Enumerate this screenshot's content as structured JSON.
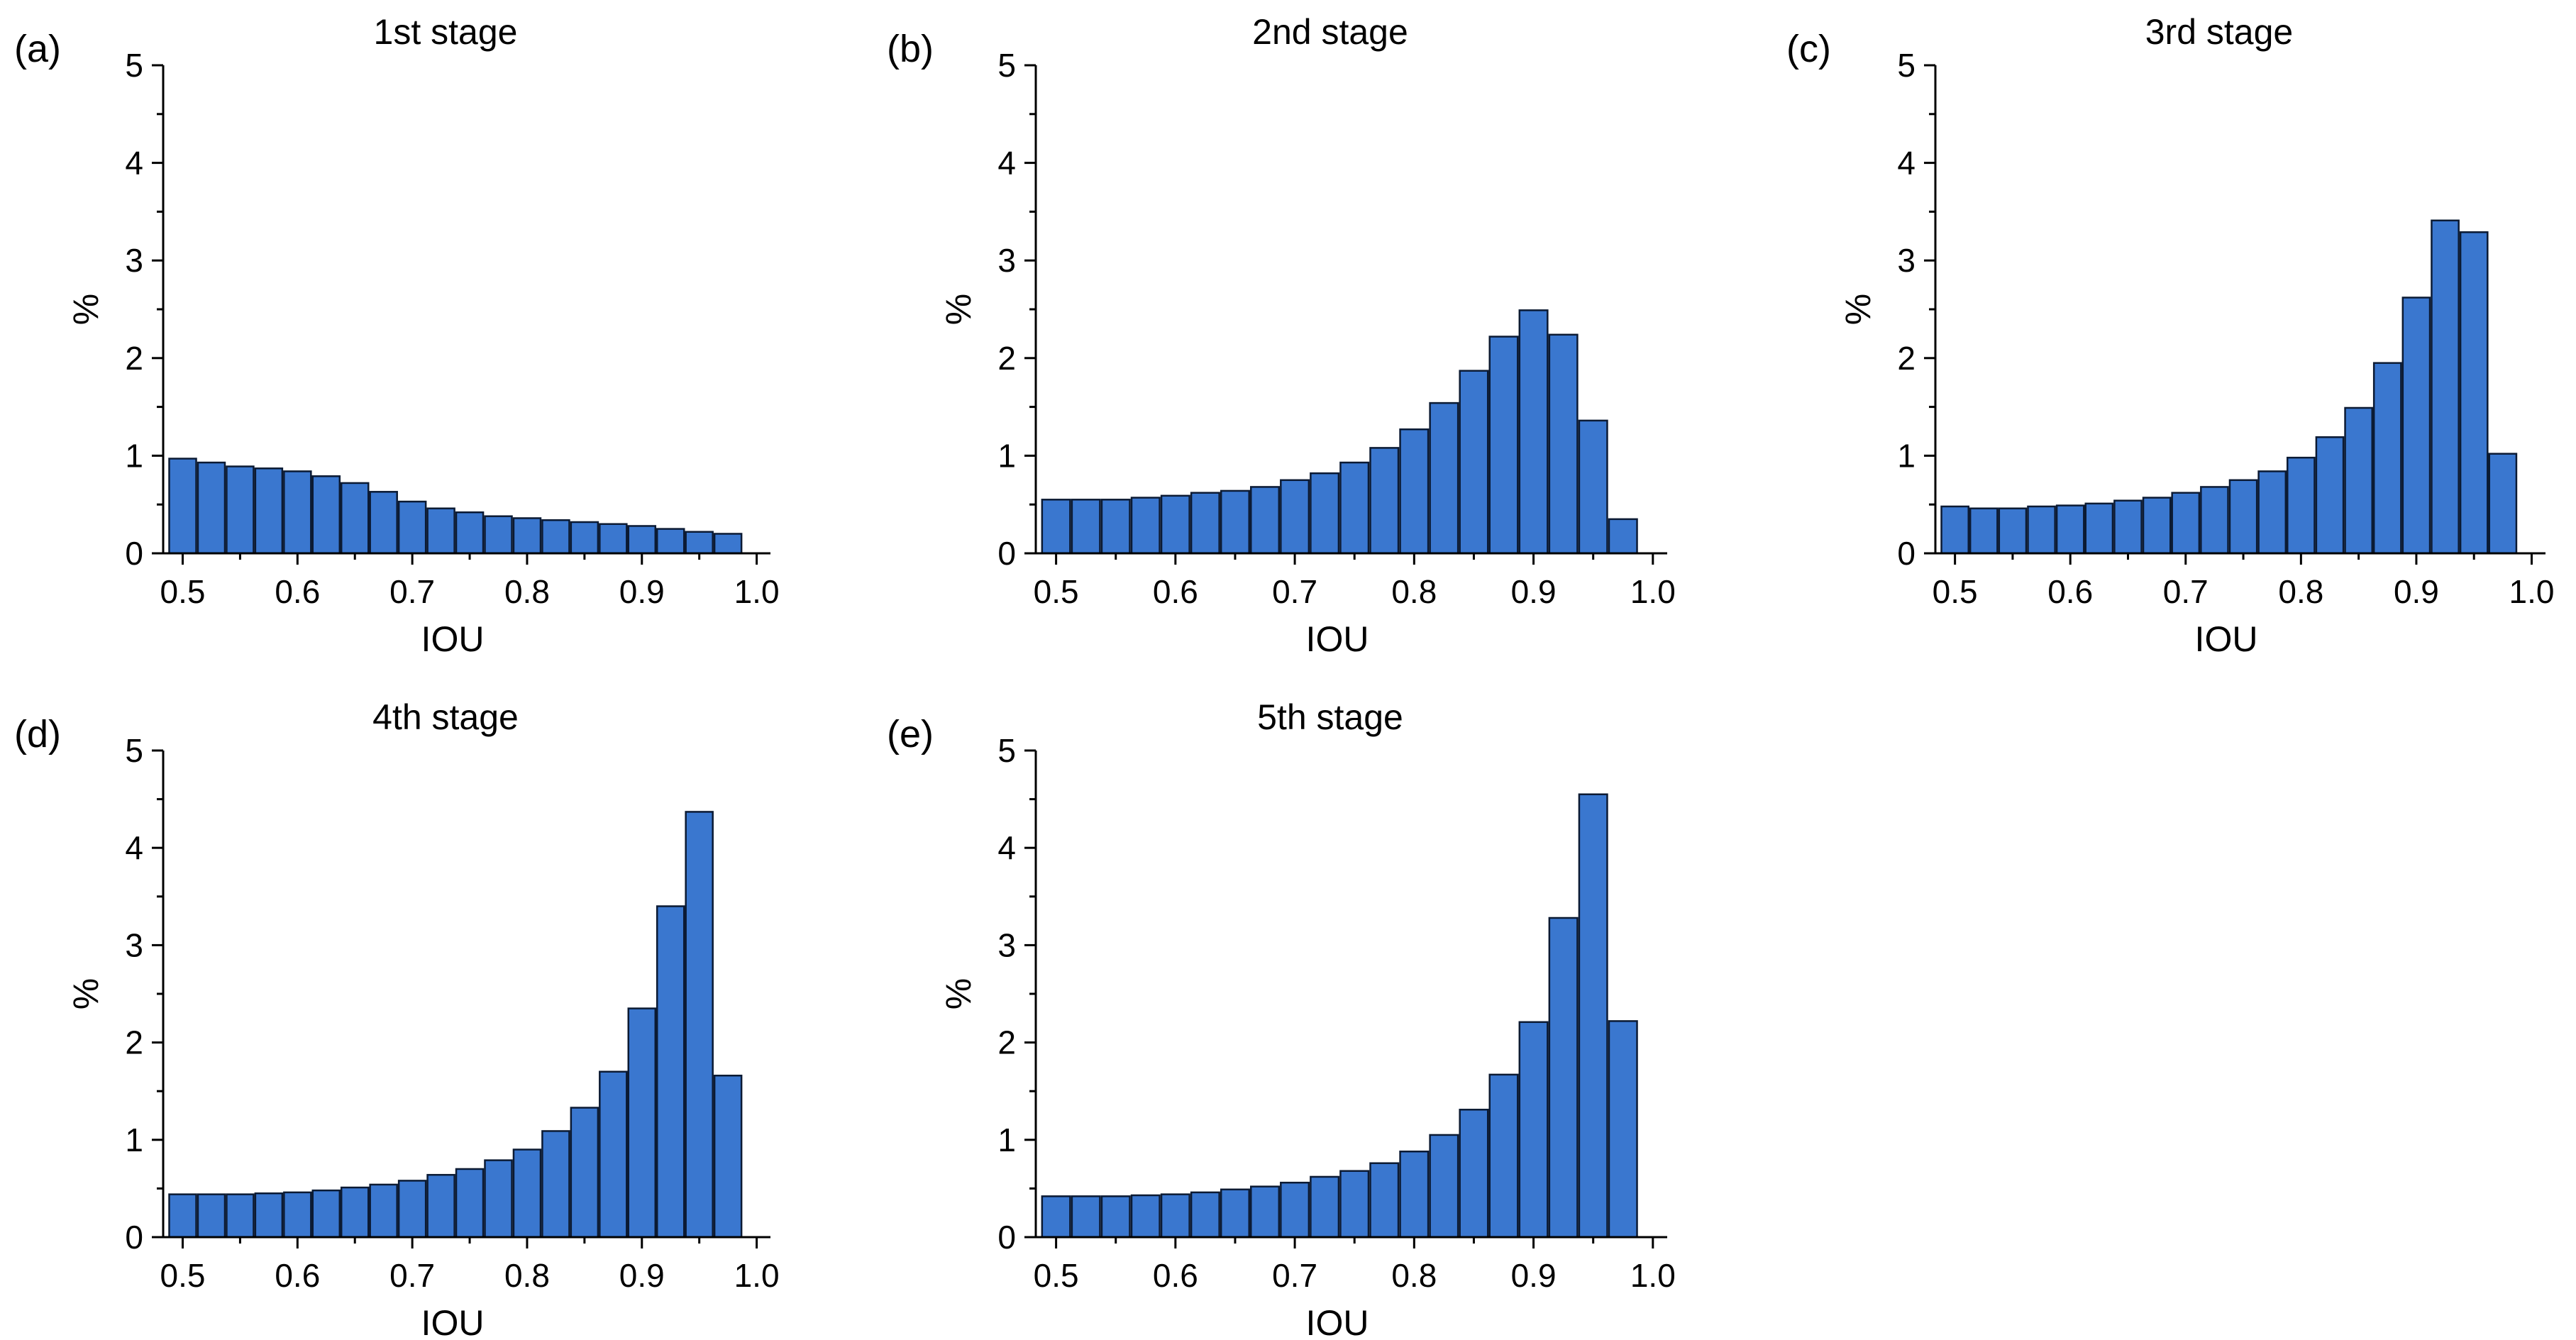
{
  "chart_data": [
    {
      "panel": "(a)",
      "type": "bar",
      "title": "1st stage",
      "xlabel": "IOU",
      "ylabel": "%",
      "xlim": [
        0.5,
        1.0
      ],
      "ylim": [
        0,
        5
      ],
      "x_ticks": [
        "0.5",
        "0.6",
        "0.7",
        "0.8",
        "0.9",
        "1.0"
      ],
      "y_ticks": [
        "0",
        "1",
        "2",
        "3",
        "4",
        "5"
      ],
      "bin_width": 0.025,
      "x": [
        0.5,
        0.525,
        0.55,
        0.575,
        0.6,
        0.625,
        0.65,
        0.675,
        0.7,
        0.725,
        0.75,
        0.775,
        0.8,
        0.825,
        0.85,
        0.875,
        0.9,
        0.925,
        0.95,
        0.975
      ],
      "values": [
        0.97,
        0.93,
        0.89,
        0.87,
        0.84,
        0.79,
        0.72,
        0.63,
        0.53,
        0.46,
        0.42,
        0.38,
        0.36,
        0.34,
        0.32,
        0.3,
        0.28,
        0.25,
        0.22,
        0.2
      ]
    },
    {
      "panel": "(b)",
      "type": "bar",
      "title": "2nd stage",
      "xlabel": "IOU",
      "ylabel": "%",
      "xlim": [
        0.5,
        1.0
      ],
      "ylim": [
        0,
        5
      ],
      "x_ticks": [
        "0.5",
        "0.6",
        "0.7",
        "0.8",
        "0.9",
        "1.0"
      ],
      "y_ticks": [
        "0",
        "1",
        "2",
        "3",
        "4",
        "5"
      ],
      "bin_width": 0.025,
      "x": [
        0.5,
        0.525,
        0.55,
        0.575,
        0.6,
        0.625,
        0.65,
        0.675,
        0.7,
        0.725,
        0.75,
        0.775,
        0.8,
        0.825,
        0.85,
        0.875,
        0.9,
        0.925,
        0.95,
        0.975
      ],
      "values": [
        0.55,
        0.55,
        0.55,
        0.57,
        0.59,
        0.62,
        0.64,
        0.68,
        0.75,
        0.82,
        0.93,
        1.08,
        1.27,
        1.54,
        1.87,
        2.22,
        2.49,
        2.24,
        1.36,
        0.35
      ]
    },
    {
      "panel": "(c)",
      "type": "bar",
      "title": "3rd stage",
      "xlabel": "IOU",
      "ylabel": "%",
      "xlim": [
        0.5,
        1.0
      ],
      "ylim": [
        0,
        5
      ],
      "x_ticks": [
        "0.5",
        "0.6",
        "0.7",
        "0.8",
        "0.9",
        "1.0"
      ],
      "y_ticks": [
        "0",
        "1",
        "2",
        "3",
        "4",
        "5"
      ],
      "bin_width": 0.025,
      "x": [
        0.5,
        0.525,
        0.55,
        0.575,
        0.6,
        0.625,
        0.65,
        0.675,
        0.7,
        0.725,
        0.75,
        0.775,
        0.8,
        0.825,
        0.85,
        0.875,
        0.9,
        0.925,
        0.95,
        0.975
      ],
      "values": [
        0.48,
        0.46,
        0.46,
        0.48,
        0.49,
        0.51,
        0.54,
        0.57,
        0.62,
        0.68,
        0.75,
        0.84,
        0.98,
        1.19,
        1.49,
        1.95,
        2.62,
        3.41,
        3.29,
        1.02
      ]
    },
    {
      "panel": "(d)",
      "type": "bar",
      "title": "4th stage",
      "xlabel": "IOU",
      "ylabel": "%",
      "xlim": [
        0.5,
        1.0
      ],
      "ylim": [
        0,
        5
      ],
      "x_ticks": [
        "0.5",
        "0.6",
        "0.7",
        "0.8",
        "0.9",
        "1.0"
      ],
      "y_ticks": [
        "0",
        "1",
        "2",
        "3",
        "4",
        "5"
      ],
      "bin_width": 0.025,
      "x": [
        0.5,
        0.525,
        0.55,
        0.575,
        0.6,
        0.625,
        0.65,
        0.675,
        0.7,
        0.725,
        0.75,
        0.775,
        0.8,
        0.825,
        0.85,
        0.875,
        0.9,
        0.925,
        0.95,
        0.975
      ],
      "values": [
        0.44,
        0.44,
        0.44,
        0.45,
        0.46,
        0.48,
        0.51,
        0.54,
        0.58,
        0.64,
        0.7,
        0.79,
        0.9,
        1.09,
        1.33,
        1.7,
        2.35,
        3.4,
        4.37,
        1.66
      ]
    },
    {
      "panel": "(e)",
      "type": "bar",
      "title": "5th stage",
      "xlabel": "IOU",
      "ylabel": "%",
      "xlim": [
        0.5,
        1.0
      ],
      "ylim": [
        0,
        5
      ],
      "x_ticks": [
        "0.5",
        "0.6",
        "0.7",
        "0.8",
        "0.9",
        "1.0"
      ],
      "y_ticks": [
        "0",
        "1",
        "2",
        "3",
        "4",
        "5"
      ],
      "bin_width": 0.025,
      "x": [
        0.5,
        0.525,
        0.55,
        0.575,
        0.6,
        0.625,
        0.65,
        0.675,
        0.7,
        0.725,
        0.75,
        0.775,
        0.8,
        0.825,
        0.85,
        0.875,
        0.9,
        0.925,
        0.95,
        0.975
      ],
      "values": [
        0.42,
        0.42,
        0.42,
        0.43,
        0.44,
        0.46,
        0.49,
        0.52,
        0.56,
        0.62,
        0.68,
        0.76,
        0.88,
        1.05,
        1.31,
        1.67,
        2.21,
        3.28,
        4.55,
        2.22
      ]
    }
  ]
}
